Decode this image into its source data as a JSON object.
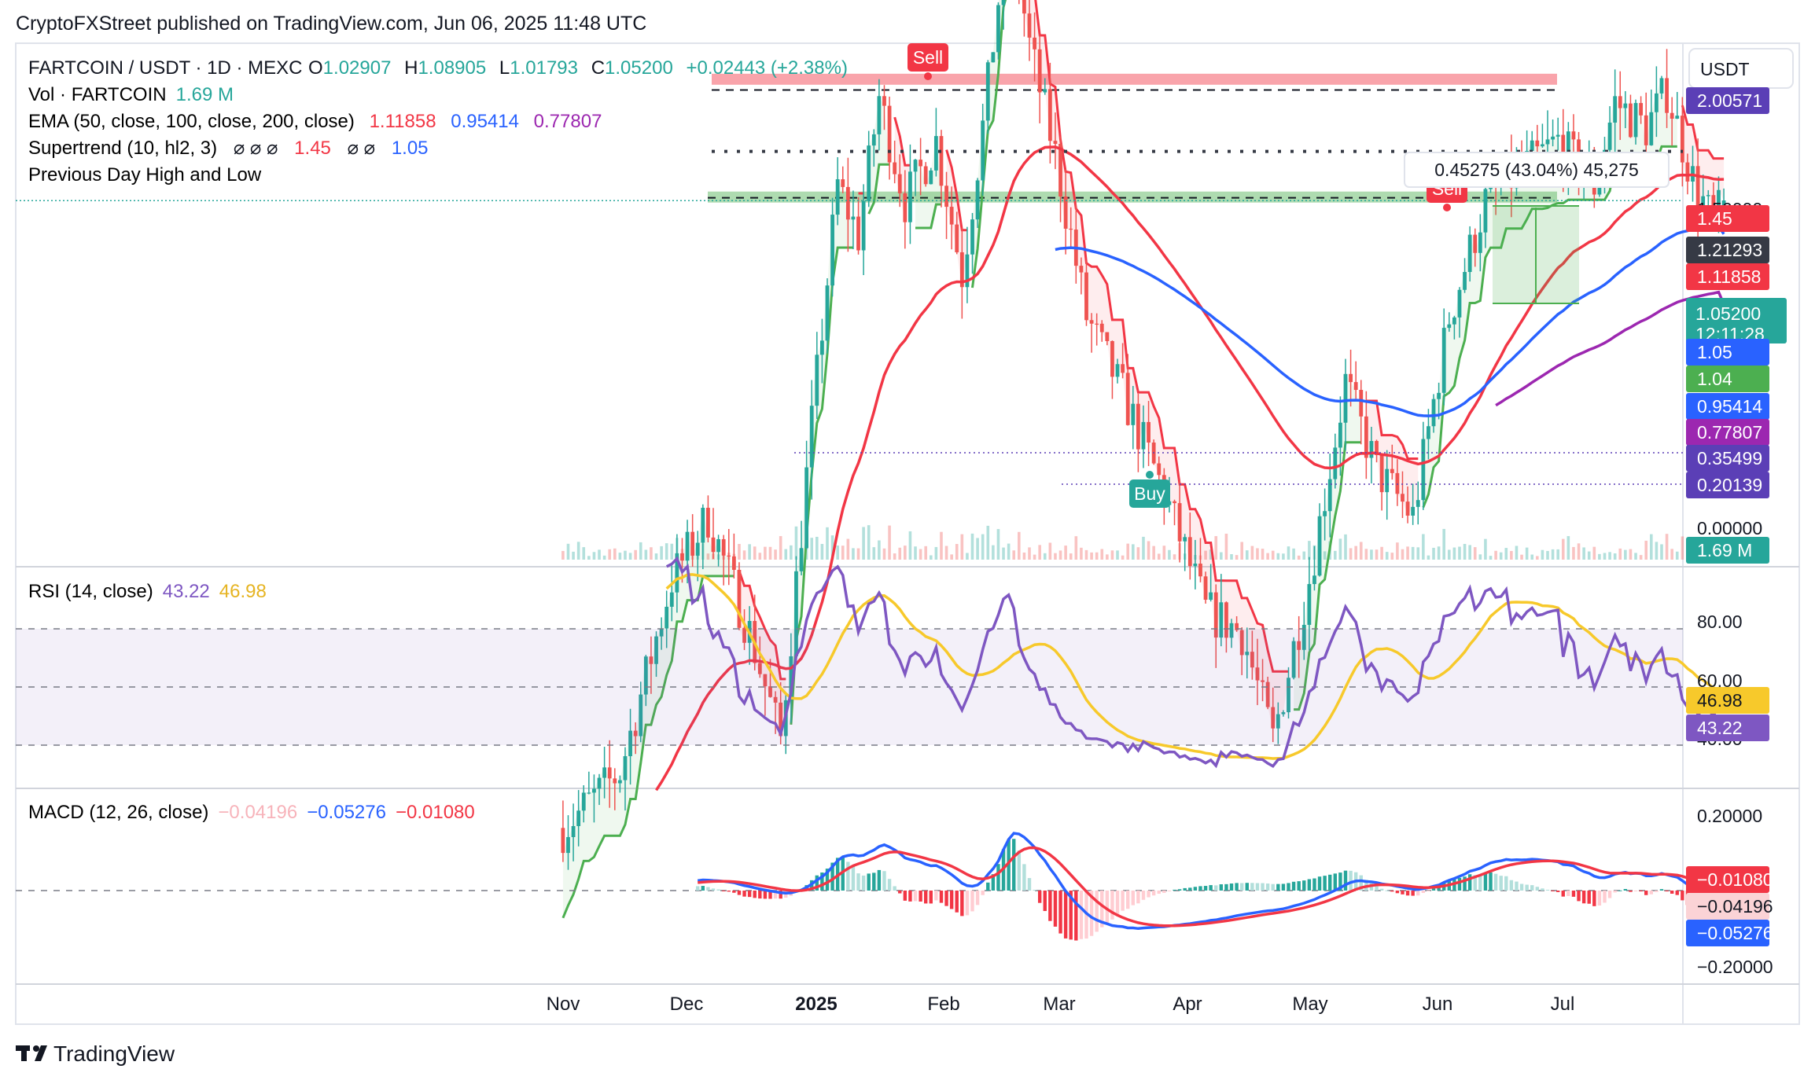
{
  "header": {
    "publisher": "CryptoFXStreet published on TradingView.com, Jun 06, 2025 11:48 UTC"
  },
  "footer": {
    "brand": "TradingView"
  },
  "price_scale_label": "USDT",
  "legend": {
    "symbol": "FARTCOIN / USDT · 1D · MEXC",
    "ohlc": [
      {
        "k": "O",
        "v": "1.02907"
      },
      {
        "k": "H",
        "v": "1.08905"
      },
      {
        "k": "L",
        "v": "1.01793"
      },
      {
        "k": "C",
        "v": "1.05200"
      }
    ],
    "change": "+0.02443 (+2.38%)",
    "vol_label": "Vol · FARTCOIN",
    "vol_value": "1.69 M",
    "ema_label": "EMA (50, close, 100, close, 200, close)",
    "ema_values": [
      "1.11858",
      "0.95414",
      "0.77807"
    ],
    "supertrend_label": "Supertrend (10, hl2, 3)",
    "supertrend_values": [
      "1.45",
      "1.05"
    ],
    "pdhl_label": "Previous Day High and Low",
    "rsi_label": "RSI (14, close)",
    "rsi_values": [
      "43.22",
      "46.98"
    ],
    "macd_label": "MACD (12, 26, close)",
    "macd_values": [
      "−0.04196",
      "−0.05276",
      "−0.01080"
    ]
  },
  "price_tags": [
    {
      "text": "2.00571",
      "color": "#5b3fb6"
    },
    {
      "text": "1.45",
      "color": "#f23645"
    },
    {
      "text": "1.21293",
      "color": "#363a45"
    },
    {
      "text": "1.11858",
      "color": "#f23645"
    },
    {
      "text": "1.05200",
      "sub": "12:11:28",
      "color": "#26a69a"
    },
    {
      "text": "1.05",
      "color": "#2962ff"
    },
    {
      "text": "1.04",
      "color": "#4caf50"
    },
    {
      "text": "0.95414",
      "color": "#2962ff"
    },
    {
      "text": "0.77807",
      "color": "#9c27b0"
    },
    {
      "text": "0.35499",
      "color": "#5b3fb6"
    },
    {
      "text": "0.20139",
      "color": "#5b3fb6"
    },
    {
      "text": "1.69 M",
      "color": "#26a69a"
    }
  ],
  "price_axis_ticks": [
    "1.50000",
    "0.00000"
  ],
  "rsi_axis": {
    "ticks": [
      "80.00",
      "60.00",
      "40.00"
    ],
    "tags": [
      {
        "text": "46.98",
        "color": "#f7c92b",
        "fg": "#131722"
      },
      {
        "text": "43.22",
        "color": "#7e57c2",
        "fg": "#ffffff"
      }
    ]
  },
  "macd_axis": {
    "ticks": [
      "0.20000",
      "−0.20000"
    ],
    "tags": [
      {
        "text": "−0.01080",
        "color": "#f23645",
        "fg": "#ffffff"
      },
      {
        "text": "−0.04196",
        "color": "#fbd3d6",
        "fg": "#131722"
      },
      {
        "text": "−0.05276",
        "color": "#2962ff",
        "fg": "#ffffff"
      }
    ]
  },
  "time_axis": [
    "Nov",
    "Dec",
    "2025",
    "Feb",
    "Mar",
    "Apr",
    "May",
    "Jun",
    "Jul"
  ],
  "signals": [
    {
      "type": "Sell",
      "color": "#f23645"
    },
    {
      "type": "Sell",
      "color": "#f23645"
    },
    {
      "type": "Buy",
      "color": "#26a69a"
    }
  ],
  "measure_box": {
    "text": "0.45275 (43.04%) 45,275"
  },
  "colors": {
    "up": "#26a69a",
    "down": "#ef5350",
    "ema50": "#f23645",
    "ema100": "#2962ff",
    "ema200": "#9c27b0",
    "st_up": "#4caf50",
    "st_down": "#f23645",
    "rsi": "#7e57c2",
    "rsi_ma": "#f7c92b",
    "macd": "#2962ff",
    "signal": "#f23645"
  },
  "chart_data": {
    "type": "candlestick",
    "title": "FARTCOIN / USDT · 1D · MEXC",
    "x_range": [
      "2024-10-15",
      "2025-07-15"
    ],
    "y_range": [
      0,
      2.05
    ],
    "levels": {
      "resistance_zone": 1.45,
      "mid_level": 1.21293,
      "support_zone": 1.04,
      "dotted_top": 2.00571,
      "dotted_low1": 0.35499,
      "dotted_low2": 0.20139
    },
    "price_path": [
      {
        "date": "2024-10-25",
        "close": 0.17
      },
      {
        "date": "2024-11-05",
        "close": 0.2
      },
      {
        "date": "2024-11-15",
        "close": 0.35
      },
      {
        "date": "2024-11-22",
        "close": 0.42
      },
      {
        "date": "2024-11-30",
        "close": 0.3
      },
      {
        "date": "2024-12-06",
        "close": 0.22
      },
      {
        "date": "2024-12-12",
        "close": 0.55
      },
      {
        "date": "2024-12-17",
        "close": 1.1
      },
      {
        "date": "2024-12-21",
        "close": 0.95
      },
      {
        "date": "2024-12-25",
        "close": 1.42
      },
      {
        "date": "2024-12-30",
        "close": 1.05
      },
      {
        "date": "2025-01-05",
        "close": 1.25
      },
      {
        "date": "2025-01-10",
        "close": 0.85
      },
      {
        "date": "2025-01-14",
        "close": 1.3
      },
      {
        "date": "2025-01-19",
        "close": 2.4
      },
      {
        "date": "2025-01-23",
        "close": 1.65
      },
      {
        "date": "2025-01-28",
        "close": 1.2
      },
      {
        "date": "2025-02-03",
        "close": 0.75
      },
      {
        "date": "2025-02-10",
        "close": 0.6
      },
      {
        "date": "2025-02-18",
        "close": 0.45
      },
      {
        "date": "2025-02-26",
        "close": 0.32
      },
      {
        "date": "2025-03-05",
        "close": 0.3
      },
      {
        "date": "2025-03-11",
        "close": 0.22
      },
      {
        "date": "2025-03-18",
        "close": 0.35
      },
      {
        "date": "2025-03-25",
        "close": 0.62
      },
      {
        "date": "2025-03-31",
        "close": 0.48
      },
      {
        "date": "2025-04-07",
        "close": 0.42
      },
      {
        "date": "2025-04-14",
        "close": 0.75
      },
      {
        "date": "2025-04-21",
        "close": 1.05
      },
      {
        "date": "2025-04-28",
        "close": 1.15
      },
      {
        "date": "2025-05-05",
        "close": 1.25
      },
      {
        "date": "2025-05-12",
        "close": 1.1
      },
      {
        "date": "2025-05-16",
        "close": 1.4
      },
      {
        "date": "2025-05-22",
        "close": 1.3
      },
      {
        "date": "2025-05-26",
        "close": 1.45
      },
      {
        "date": "2025-05-31",
        "close": 1.12
      },
      {
        "date": "2025-06-04",
        "close": 0.98
      },
      {
        "date": "2025-06-06",
        "close": 1.052
      }
    ],
    "ema50_last": 1.11858,
    "ema100_last": 0.95414,
    "ema200_last": 0.77807,
    "rsi": {
      "last": 43.22,
      "ma_last": 46.98,
      "upper_band": 70,
      "middle": 50,
      "lower_band": 30
    },
    "macd": {
      "macd_last": -0.05276,
      "signal_last": -0.04196,
      "hist_last": -0.0108
    }
  }
}
